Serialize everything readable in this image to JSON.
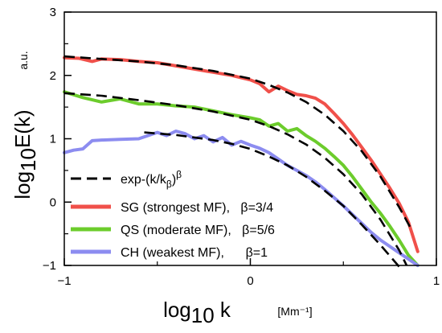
{
  "chart_data": {
    "type": "line",
    "xlim": [
      -1,
      1
    ],
    "ylim": [
      -1,
      3
    ],
    "x_ticks": [
      -1,
      0,
      1
    ],
    "y_ticks": [
      -1,
      0,
      1,
      2,
      3
    ],
    "xlabel": {
      "main": "log",
      "sub": "10",
      "tail": " k",
      "unit": "[Mm⁻¹]"
    },
    "ylabel": {
      "main": "log",
      "sub": "10",
      "tail": "E(k)",
      "unit": "a.u."
    },
    "grid": false,
    "legend_position": "lower-left",
    "fit_legend": {
      "prefix": "exp-(k/k",
      "sub": "β",
      "suffix": ")",
      "sup": "β"
    },
    "colors": {
      "SG": "#f0504a",
      "QS": "#6ccc2c",
      "CH": "#8c8cf0",
      "fit": "#000000"
    },
    "series": [
      {
        "name": "SG (strongest MF),   β=3/4",
        "key": "SG",
        "x": [
          -1.0,
          -0.92,
          -0.85,
          -0.8,
          -0.7,
          -0.6,
          -0.5,
          -0.4,
          -0.3,
          -0.2,
          -0.1,
          0.0,
          0.05,
          0.1,
          0.15,
          0.2,
          0.25,
          0.3,
          0.35,
          0.4,
          0.45,
          0.5,
          0.55,
          0.6,
          0.65,
          0.7,
          0.75,
          0.8,
          0.85,
          0.9
        ],
        "y": [
          2.28,
          2.27,
          2.22,
          2.26,
          2.25,
          2.22,
          2.2,
          2.15,
          2.1,
          2.05,
          2.0,
          1.93,
          1.87,
          1.74,
          1.83,
          1.76,
          1.7,
          1.68,
          1.64,
          1.55,
          1.4,
          1.24,
          1.06,
          0.86,
          0.66,
          0.44,
          0.22,
          -0.02,
          -0.32,
          -0.78
        ]
      },
      {
        "name": "QS (moderate MF),   β=5/6",
        "key": "QS",
        "x": [
          -1.0,
          -0.9,
          -0.8,
          -0.7,
          -0.6,
          -0.5,
          -0.4,
          -0.3,
          -0.2,
          -0.1,
          0.0,
          0.05,
          0.1,
          0.15,
          0.2,
          0.25,
          0.3,
          0.35,
          0.4,
          0.45,
          0.5,
          0.55,
          0.6,
          0.65,
          0.7,
          0.75,
          0.8,
          0.85,
          0.9
        ],
        "y": [
          1.74,
          1.65,
          1.58,
          1.63,
          1.55,
          1.55,
          1.52,
          1.5,
          1.44,
          1.38,
          1.33,
          1.3,
          1.2,
          1.24,
          1.12,
          1.16,
          1.05,
          0.96,
          0.85,
          0.72,
          0.58,
          0.4,
          0.2,
          0.0,
          -0.18,
          -0.38,
          -0.6,
          -0.84,
          -1.0
        ]
      },
      {
        "name": "CH (weakest MF),      β=1",
        "key": "CH",
        "x": [
          -1.0,
          -0.95,
          -0.9,
          -0.85,
          -0.8,
          -0.7,
          -0.6,
          -0.5,
          -0.45,
          -0.4,
          -0.35,
          -0.3,
          -0.25,
          -0.2,
          -0.15,
          -0.1,
          -0.05,
          0.0,
          0.05,
          0.1,
          0.15,
          0.2,
          0.25,
          0.3,
          0.35,
          0.4,
          0.45,
          0.5,
          0.55,
          0.6,
          0.65,
          0.7,
          0.75,
          0.8,
          0.85,
          0.9
        ],
        "y": [
          0.78,
          0.82,
          0.84,
          0.97,
          0.98,
          0.99,
          1.0,
          1.1,
          1.05,
          1.12,
          1.08,
          1.0,
          1.05,
          0.95,
          1.02,
          0.9,
          0.96,
          0.9,
          0.85,
          0.78,
          0.68,
          0.58,
          0.5,
          0.42,
          0.32,
          0.2,
          0.07,
          -0.06,
          -0.2,
          -0.34,
          -0.48,
          -0.6,
          -0.7,
          -0.8,
          -0.9,
          -1.0
        ]
      }
    ],
    "fits": [
      {
        "x": [
          -1.0,
          -0.8,
          -0.6,
          -0.4,
          -0.2,
          0.0,
          0.1,
          0.2,
          0.3,
          0.4,
          0.5,
          0.6,
          0.7,
          0.8,
          0.86
        ],
        "y": [
          2.3,
          2.26,
          2.22,
          2.16,
          2.07,
          1.95,
          1.85,
          1.73,
          1.58,
          1.38,
          1.12,
          0.8,
          0.4,
          -0.08,
          -0.4
        ]
      },
      {
        "x": [
          -1.0,
          -0.8,
          -0.6,
          -0.4,
          -0.2,
          0.0,
          0.1,
          0.2,
          0.3,
          0.4,
          0.5,
          0.6,
          0.7,
          0.8,
          0.84
        ],
        "y": [
          1.72,
          1.68,
          1.61,
          1.53,
          1.43,
          1.3,
          1.2,
          1.07,
          0.91,
          0.7,
          0.44,
          0.12,
          -0.28,
          -0.76,
          -1.0
        ]
      },
      {
        "x": [
          -0.57,
          -0.4,
          -0.2,
          -0.1,
          0.0,
          0.1,
          0.2,
          0.3,
          0.4,
          0.5,
          0.6,
          0.7,
          0.8
        ],
        "y": [
          1.1,
          1.06,
          0.98,
          0.92,
          0.84,
          0.72,
          0.58,
          0.4,
          0.18,
          -0.06,
          -0.36,
          -0.68,
          -1.02
        ]
      }
    ]
  }
}
